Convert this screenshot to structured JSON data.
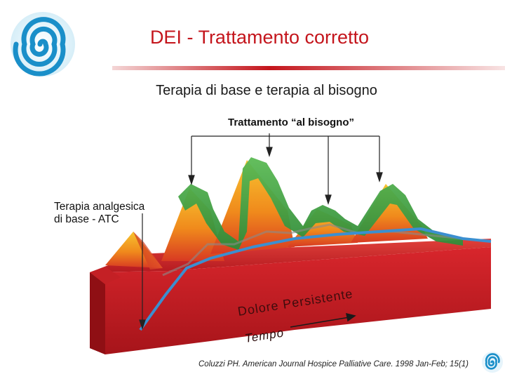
{
  "header": {
    "title": "DEI - Trattamento corretto",
    "subtitle": "Terapia di base e terapia al bisogno",
    "accent_color": "#c4151c"
  },
  "diagram": {
    "label_bisogno": "Trattamento “al bisogno”",
    "label_atc_line1": "Terapia analgesica",
    "label_atc_line2": "di base - ATC",
    "label_dolore": "Dolore Persistente",
    "label_tempo": "Tempo",
    "colors": {
      "base_red": "#d8262c",
      "base_dark": "#8f0f14",
      "peak_orange": "#f39a1a",
      "bisogno_green": "#3a9a3f",
      "atc_blue": "#3b8fd0"
    }
  },
  "footer": {
    "citation": "Coluzzi PH. American Journal Hospice Palliative Care. 1998 Jan-Feb; 15(1)"
  },
  "icons": [
    "spiral-logo-icon",
    "spiral-logo-small-icon"
  ]
}
